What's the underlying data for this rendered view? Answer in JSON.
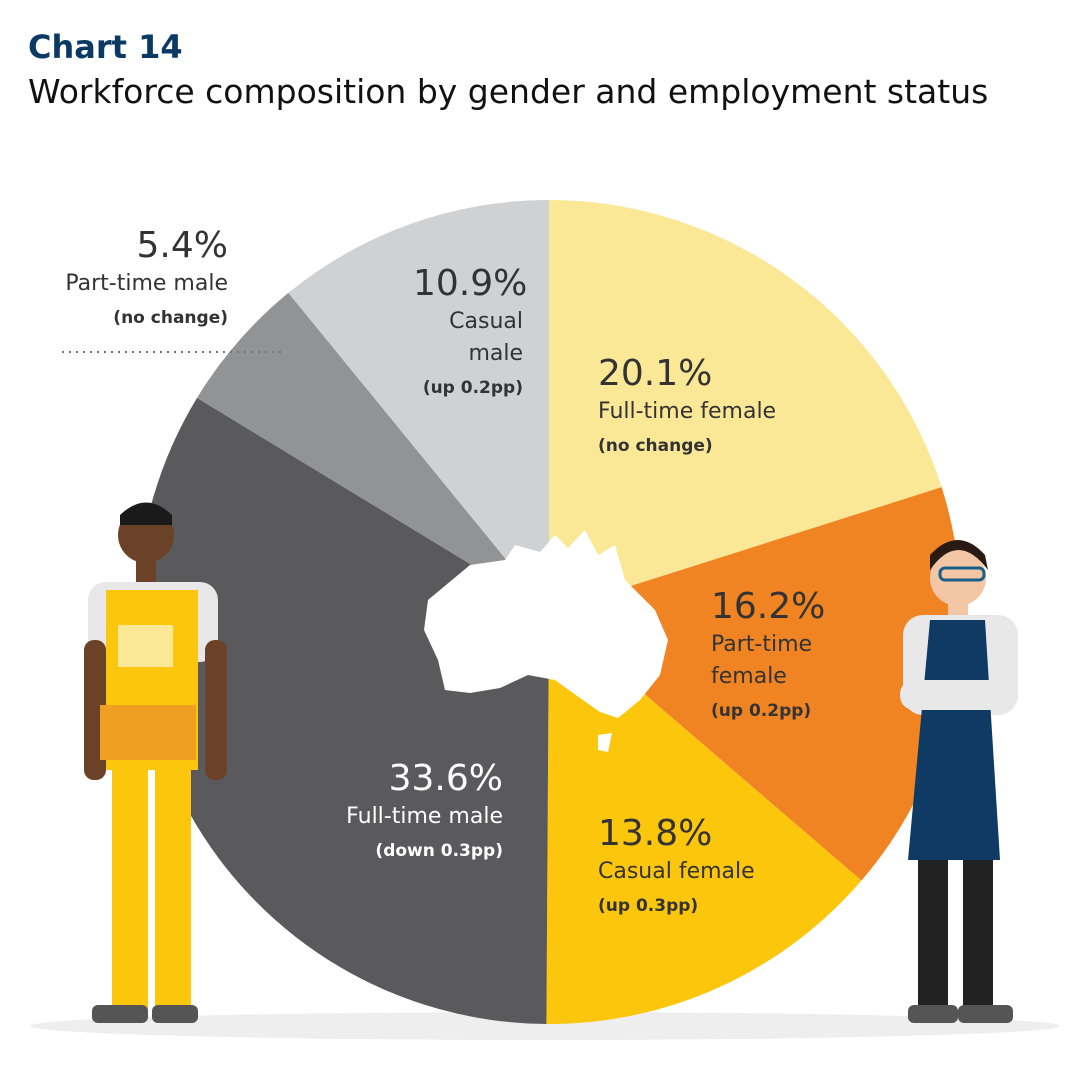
{
  "chart_data": {
    "type": "pie",
    "title": "Chart 14",
    "subtitle": "Workforce composition by gender and employment status",
    "categories": [
      "Full-time female",
      "Part-time female",
      "Casual female",
      "Full-time male",
      "Part-time male",
      "Casual male"
    ],
    "values": [
      20.1,
      16.2,
      13.8,
      33.6,
      5.4,
      10.9
    ],
    "value_labels": [
      "20.1%",
      "16.2%",
      "13.8%",
      "33.6%",
      "5.4%",
      "10.9%"
    ],
    "notes": [
      "(no change)",
      "(up 0.2pp)",
      "(up 0.3pp)",
      "(down 0.3pp)",
      "(no change)",
      "(up 0.2pp)"
    ],
    "colors": [
      "#fbe896",
      "#f08422",
      "#fcc60d",
      "#5a5a5c",
      "#929395",
      "#d0d1d3"
    ]
  }
}
